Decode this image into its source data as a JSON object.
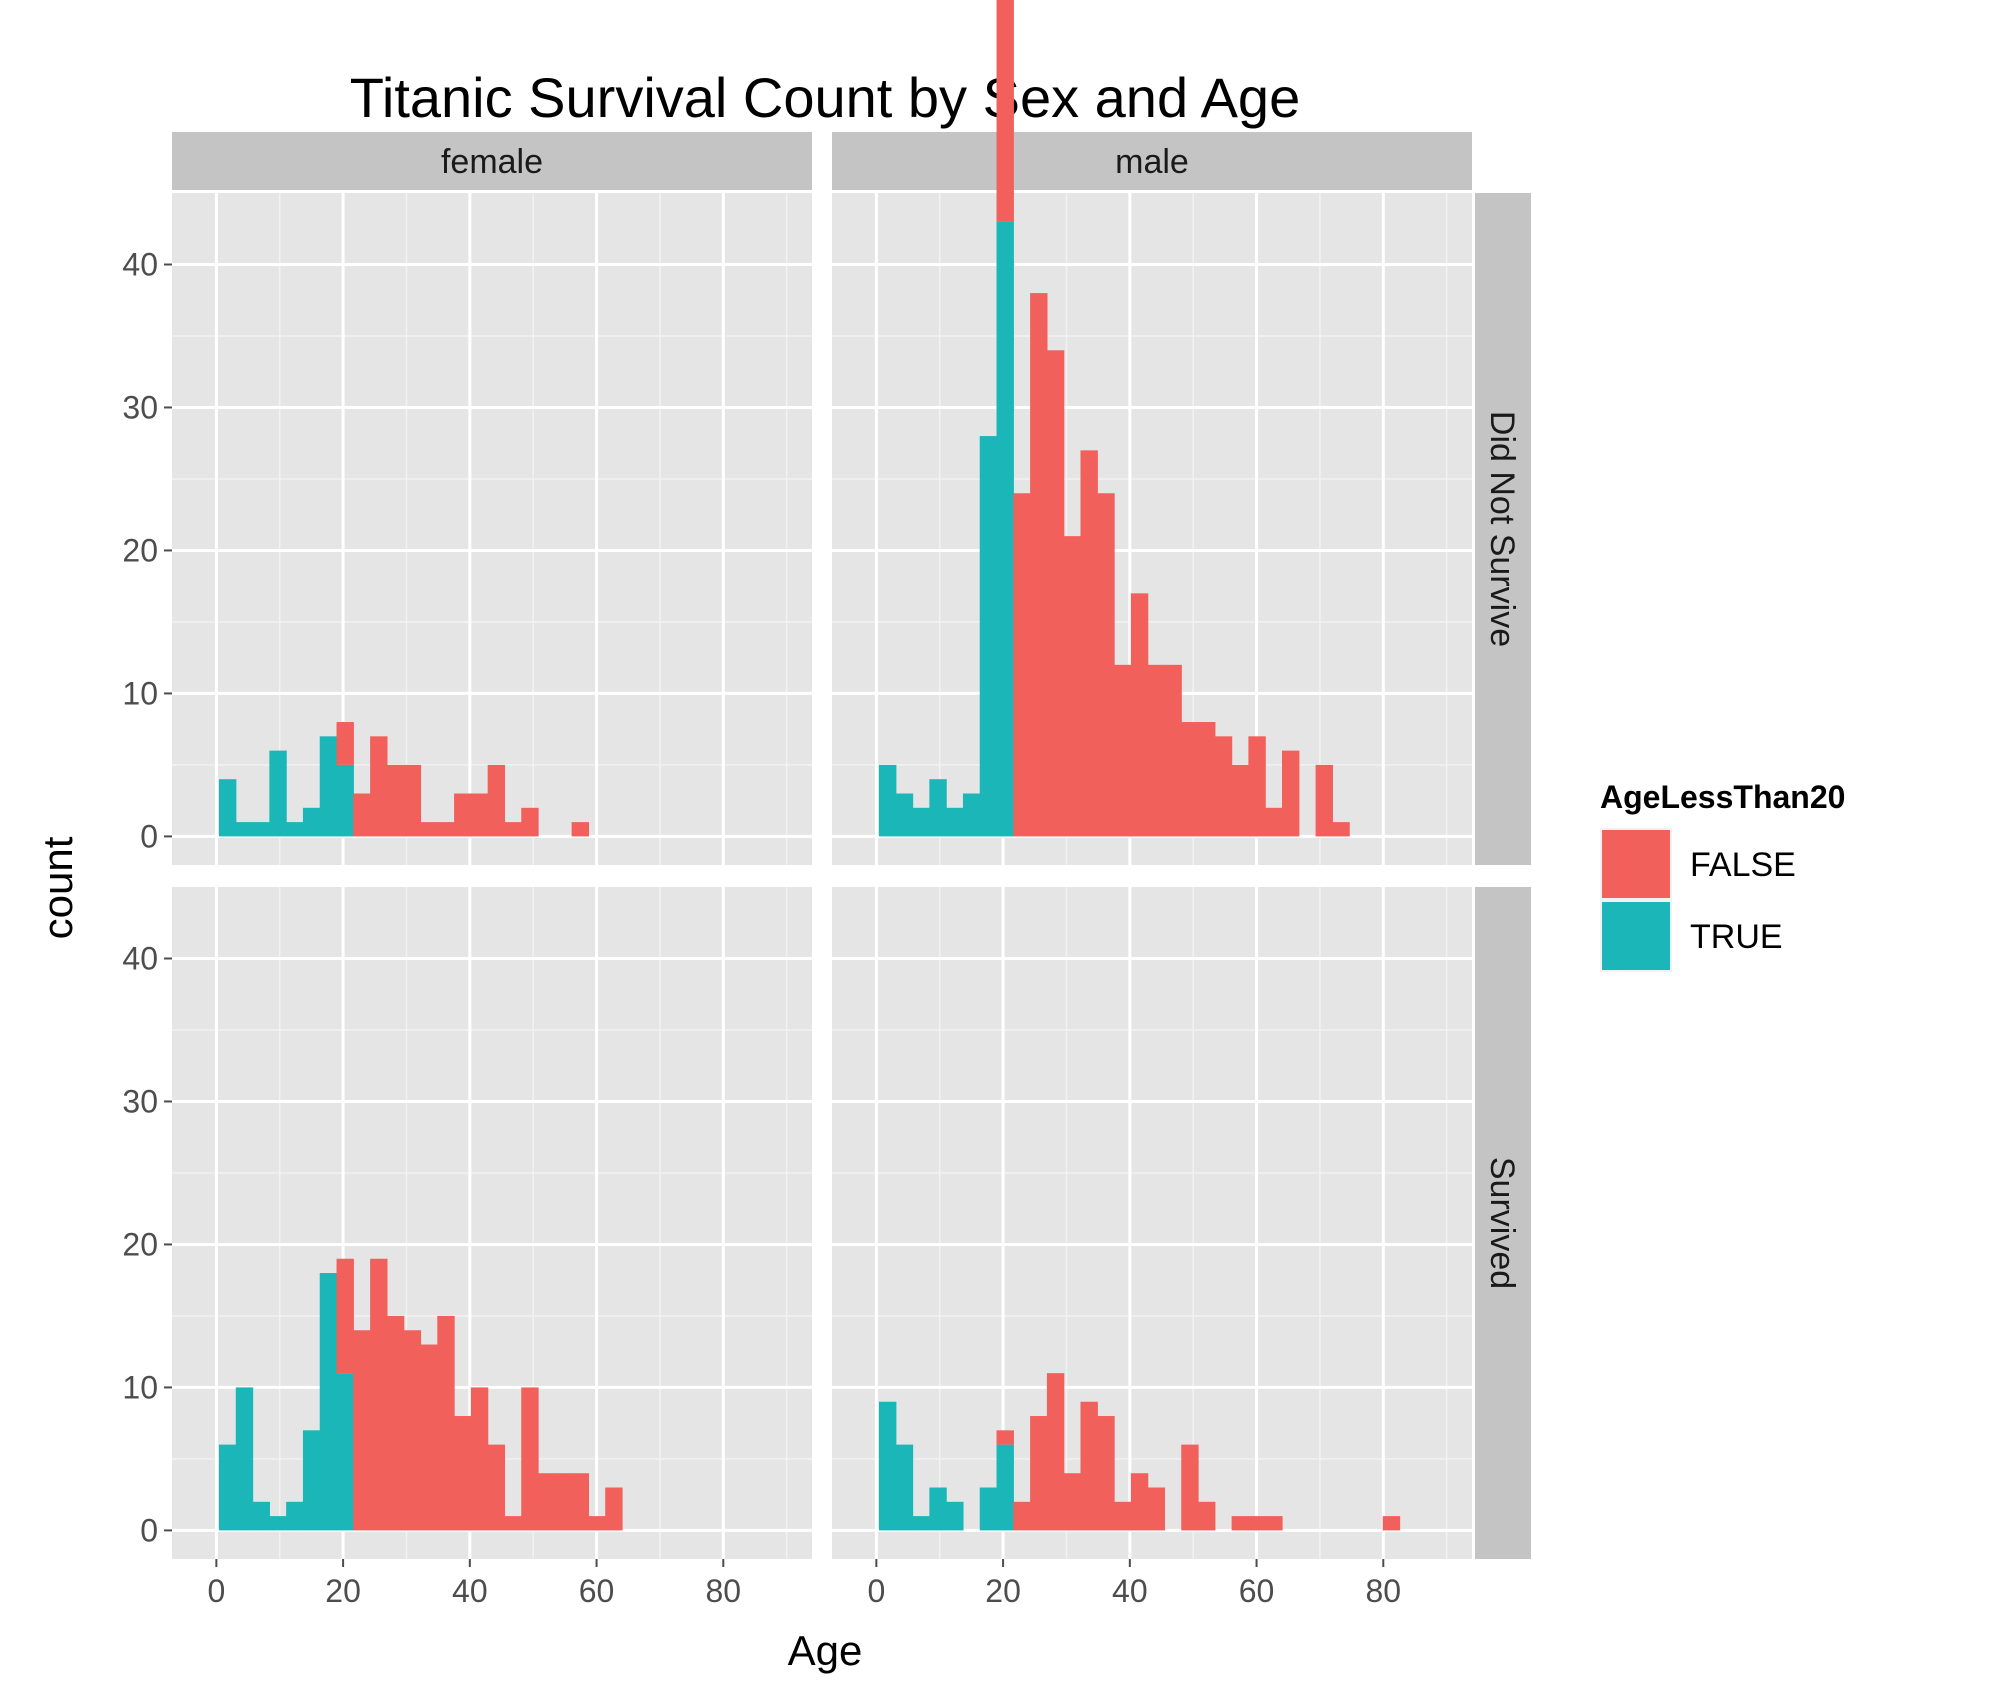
{
  "chart_data": {
    "type": "histogram",
    "title": "Titanic Survival Count by Sex and Age",
    "xlabel": "Age",
    "ylabel": "count",
    "xlim": [
      -7,
      94
    ],
    "ylim": [
      -2,
      45
    ],
    "x_ticks": [
      0,
      20,
      40,
      60,
      80
    ],
    "y_ticks": [
      0,
      10,
      20,
      30,
      40
    ],
    "bin_width": 2.65,
    "bin_start": 0.42,
    "grid": true,
    "col_facets": [
      "female",
      "male"
    ],
    "row_facets": [
      "Did Not Survive",
      "Survived"
    ],
    "legend": {
      "title": "AgeLessThan20",
      "position": "right",
      "entries": [
        {
          "label": "FALSE",
          "color": "#F2605C"
        },
        {
          "label": "TRUE",
          "color": "#1AB6B8"
        }
      ]
    },
    "panels": [
      {
        "col": "female",
        "row": "Did Not Survive",
        "bins": [
          {
            "x": 1.74,
            "count": 4,
            "group": "TRUE"
          },
          {
            "x": 4.39,
            "count": 1,
            "group": "TRUE"
          },
          {
            "x": 7.04,
            "count": 1,
            "group": "TRUE"
          },
          {
            "x": 9.69,
            "count": 6,
            "group": "TRUE"
          },
          {
            "x": 12.34,
            "count": 1,
            "group": "TRUE"
          },
          {
            "x": 14.99,
            "count": 2,
            "group": "TRUE"
          },
          {
            "x": 17.64,
            "count": 7,
            "group": "TRUE"
          },
          {
            "x": 20.29,
            "count": 5,
            "group": "TRUE"
          },
          {
            "x": 20.29,
            "count": 3,
            "group": "FALSE"
          },
          {
            "x": 22.94,
            "count": 3,
            "group": "FALSE"
          },
          {
            "x": 25.59,
            "count": 7,
            "group": "FALSE"
          },
          {
            "x": 28.24,
            "count": 5,
            "group": "FALSE"
          },
          {
            "x": 30.89,
            "count": 5,
            "group": "FALSE"
          },
          {
            "x": 33.54,
            "count": 1,
            "group": "FALSE"
          },
          {
            "x": 36.19,
            "count": 1,
            "group": "FALSE"
          },
          {
            "x": 38.84,
            "count": 3,
            "group": "FALSE"
          },
          {
            "x": 41.49,
            "count": 3,
            "group": "FALSE"
          },
          {
            "x": 44.14,
            "count": 5,
            "group": "FALSE"
          },
          {
            "x": 46.79,
            "count": 1,
            "group": "FALSE"
          },
          {
            "x": 49.44,
            "count": 2,
            "group": "FALSE"
          },
          {
            "x": 57.39,
            "count": 1,
            "group": "FALSE"
          }
        ]
      },
      {
        "col": "male",
        "row": "Did Not Survive",
        "bins": [
          {
            "x": 1.74,
            "count": 5,
            "group": "TRUE"
          },
          {
            "x": 4.39,
            "count": 3,
            "group": "TRUE"
          },
          {
            "x": 7.04,
            "count": 2,
            "group": "TRUE"
          },
          {
            "x": 9.69,
            "count": 4,
            "group": "TRUE"
          },
          {
            "x": 12.34,
            "count": 2,
            "group": "TRUE"
          },
          {
            "x": 14.99,
            "count": 3,
            "group": "TRUE"
          },
          {
            "x": 17.64,
            "count": 28,
            "group": "TRUE"
          },
          {
            "x": 20.29,
            "count": 43,
            "group": "TRUE"
          },
          {
            "x": 20.29,
            "count": 17,
            "group": "FALSE"
          },
          {
            "x": 22.94,
            "count": 24,
            "group": "FALSE"
          },
          {
            "x": 25.59,
            "count": 38,
            "group": "FALSE"
          },
          {
            "x": 28.24,
            "count": 34,
            "group": "FALSE"
          },
          {
            "x": 30.89,
            "count": 21,
            "group": "FALSE"
          },
          {
            "x": 33.54,
            "count": 27,
            "group": "FALSE"
          },
          {
            "x": 36.19,
            "count": 24,
            "group": "FALSE"
          },
          {
            "x": 38.84,
            "count": 12,
            "group": "FALSE"
          },
          {
            "x": 41.49,
            "count": 17,
            "group": "FALSE"
          },
          {
            "x": 44.14,
            "count": 12,
            "group": "FALSE"
          },
          {
            "x": 46.79,
            "count": 12,
            "group": "FALSE"
          },
          {
            "x": 49.44,
            "count": 8,
            "group": "FALSE"
          },
          {
            "x": 52.09,
            "count": 8,
            "group": "FALSE"
          },
          {
            "x": 54.74,
            "count": 7,
            "group": "FALSE"
          },
          {
            "x": 57.39,
            "count": 5,
            "group": "FALSE"
          },
          {
            "x": 60.04,
            "count": 7,
            "group": "FALSE"
          },
          {
            "x": 62.69,
            "count": 2,
            "group": "FALSE"
          },
          {
            "x": 65.34,
            "count": 6,
            "group": "FALSE"
          },
          {
            "x": 70.64,
            "count": 5,
            "group": "FALSE"
          },
          {
            "x": 73.29,
            "count": 1,
            "group": "FALSE"
          }
        ]
      },
      {
        "col": "female",
        "row": "Survived",
        "bins": [
          {
            "x": 1.74,
            "count": 6,
            "group": "TRUE"
          },
          {
            "x": 4.39,
            "count": 10,
            "group": "TRUE"
          },
          {
            "x": 7.04,
            "count": 2,
            "group": "TRUE"
          },
          {
            "x": 9.69,
            "count": 1,
            "group": "TRUE"
          },
          {
            "x": 12.34,
            "count": 2,
            "group": "TRUE"
          },
          {
            "x": 14.99,
            "count": 7,
            "group": "TRUE"
          },
          {
            "x": 17.64,
            "count": 18,
            "group": "TRUE"
          },
          {
            "x": 20.29,
            "count": 11,
            "group": "TRUE"
          },
          {
            "x": 20.29,
            "count": 8,
            "group": "FALSE"
          },
          {
            "x": 22.94,
            "count": 14,
            "group": "FALSE"
          },
          {
            "x": 25.59,
            "count": 19,
            "group": "FALSE"
          },
          {
            "x": 28.24,
            "count": 15,
            "group": "FALSE"
          },
          {
            "x": 30.89,
            "count": 14,
            "group": "FALSE"
          },
          {
            "x": 33.54,
            "count": 13,
            "group": "FALSE"
          },
          {
            "x": 36.19,
            "count": 15,
            "group": "FALSE"
          },
          {
            "x": 38.84,
            "count": 8,
            "group": "FALSE"
          },
          {
            "x": 41.49,
            "count": 10,
            "group": "FALSE"
          },
          {
            "x": 44.14,
            "count": 6,
            "group": "FALSE"
          },
          {
            "x": 46.79,
            "count": 1,
            "group": "FALSE"
          },
          {
            "x": 49.44,
            "count": 10,
            "group": "FALSE"
          },
          {
            "x": 52.09,
            "count": 4,
            "group": "FALSE"
          },
          {
            "x": 54.74,
            "count": 4,
            "group": "FALSE"
          },
          {
            "x": 57.39,
            "count": 4,
            "group": "FALSE"
          },
          {
            "x": 60.04,
            "count": 1,
            "group": "FALSE"
          },
          {
            "x": 62.69,
            "count": 3,
            "group": "FALSE"
          }
        ]
      },
      {
        "col": "male",
        "row": "Survived",
        "bins": [
          {
            "x": 1.74,
            "count": 9,
            "group": "TRUE"
          },
          {
            "x": 4.39,
            "count": 6,
            "group": "TRUE"
          },
          {
            "x": 7.04,
            "count": 1,
            "group": "TRUE"
          },
          {
            "x": 9.69,
            "count": 3,
            "group": "TRUE"
          },
          {
            "x": 12.34,
            "count": 2,
            "group": "TRUE"
          },
          {
            "x": 17.64,
            "count": 3,
            "group": "TRUE"
          },
          {
            "x": 20.29,
            "count": 6,
            "group": "TRUE"
          },
          {
            "x": 20.29,
            "count": 1,
            "group": "FALSE"
          },
          {
            "x": 22.94,
            "count": 2,
            "group": "FALSE"
          },
          {
            "x": 25.59,
            "count": 8,
            "group": "FALSE"
          },
          {
            "x": 28.24,
            "count": 11,
            "group": "FALSE"
          },
          {
            "x": 30.89,
            "count": 4,
            "group": "FALSE"
          },
          {
            "x": 33.54,
            "count": 9,
            "group": "FALSE"
          },
          {
            "x": 36.19,
            "count": 8,
            "group": "FALSE"
          },
          {
            "x": 38.84,
            "count": 2,
            "group": "FALSE"
          },
          {
            "x": 41.49,
            "count": 4,
            "group": "FALSE"
          },
          {
            "x": 44.14,
            "count": 3,
            "group": "FALSE"
          },
          {
            "x": 49.44,
            "count": 6,
            "group": "FALSE"
          },
          {
            "x": 52.09,
            "count": 2,
            "group": "FALSE"
          },
          {
            "x": 57.39,
            "count": 1,
            "group": "FALSE"
          },
          {
            "x": 60.04,
            "count": 1,
            "group": "FALSE"
          },
          {
            "x": 62.69,
            "count": 1,
            "group": "FALSE"
          },
          {
            "x": 81.24,
            "count": 1,
            "group": "FALSE"
          }
        ]
      }
    ]
  }
}
